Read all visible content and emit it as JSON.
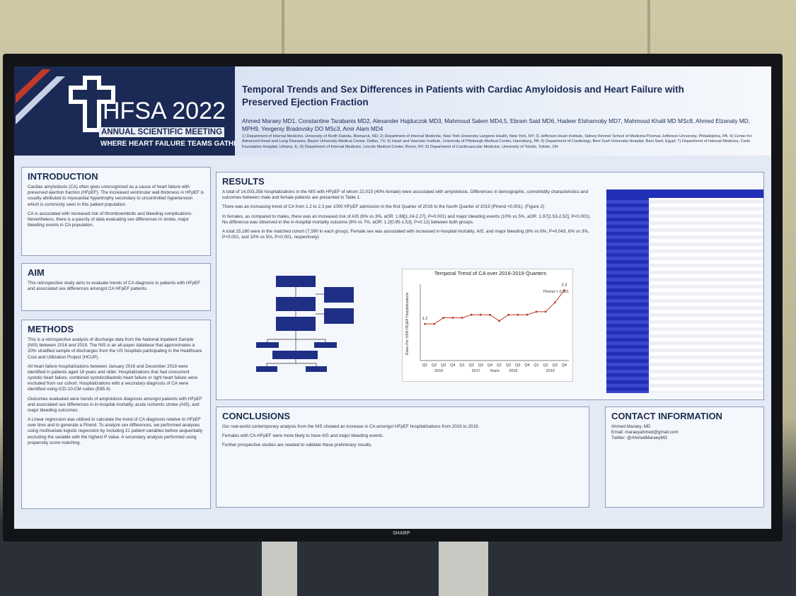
{
  "header": {
    "logo_title": "HFSA 2022",
    "logo_subtitle": "ANNUAL SCIENTIFIC MEETING",
    "logo_tagline": "WHERE HEART FAILURE TEAMS GATHER",
    "title": "Temporal Trends and Sex Differences in Patients with Cardiac Amyloidosis and Heart Failure with Preserved Ejection Fraction",
    "authors": "Ahmed Maraey MD1, Constantine Tarabanis MD2, Alexander Hajduczok MD3, Mahmoud Salem MD4,5, Ebram Said MD6, Hadeer Elsharnoby MD7, Mahmoud Khalil MD MSc8, Ahmed Elzanaty MD, MPH9, Yevgeniy Bradovsky DO MSc3, Amir Alam MD4",
    "affiliations": "1) Department of Internal Medicine, University of North Dakota, Bismarck, ND; 2) Department of Internal Medicine, New York University Langone Health, New York, NY; 3) Jefferson Heart Institute, Sidney Kimmel School of Medicine/Thomas Jefferson University, Philadelphia, PA; 4) Center for Advanced Heart and Lung Diseases, Baylor University Medical Center, Dallas, TX; 5) Heart and Vascular Institute, University of Pittsburgh Medical Center, Harrisburg, PA; 6) Department of Cardiology, Beni Suef University Hospital, Beni Suef, Egypt; 7) Department of Internal Medicine, Carle Foundation Hospital, Urbana, IL; 8) Department of Internal Medicine, Lincoln Medical Center, Bronx, NY; 9) Department of Cardiovascular Medicine, University of Toledo, Toledo, OH"
  },
  "introduction": {
    "heading": "INTRODUCTION",
    "paragraphs": [
      "Cardiac amyloidosis (CA) often goes unrecognized as a cause of heart failure with preserved ejection fraction (HFpEF). The increased ventricular wall thickness in HFpEF is usually attributed to myocardial hypertrophy secondary to uncontrolled hypertension which is commonly seen in this patient population.",
      "CA is associated with increased risk of thromboembolic and bleeding complications. Nevertheless, there is a paucity of data evaluating sex differences in stroke, major bleeding events in CA population."
    ]
  },
  "aim": {
    "heading": "AIM",
    "paragraphs": [
      "This retrospective study aims to evaluate trends of CA diagnosis in patients with HFpEF and associated sex differences amongst CA HFpEF patients."
    ]
  },
  "methods": {
    "heading": "METHODS",
    "paragraphs": [
      "This is a retrospective analysis of discharge data from the National Inpatient Sample (NIS) between 2016 and 2019. The NIS is an all-payer database that approximates a 20% stratified sample of discharges from the US hospitals participating in the Healthcare Cost and Utilization Project (HCUP).",
      "All heart failure hospitalizations between January 2016 and December 2019 were identified in patients aged 18 years and older. Hospitalizations that had concurrent systolic heart failure, combined systolic/diastolic heart failure or right heart failure were excluded from our cohort. Hospitalizations with a secondary diagnosis of CA were identified using ICD-10-CM codes (E85.4).",
      "Outcomes evaluated were trends of amyloidosis diagnosis amongst patients with HFpEF and associated sex differences in in-hospital mortality, acute ischemic stroke (AIS), and major bleeding outcomes.",
      "A Linear regression was utilized to calculate the trend of CA diagnosis relative to HFpEF over time and to generate a Ptrend. To analyze sex differences, we performed analyses using multivariate logistic regression by including 21 patient variables before sequentially excluding the variable with the highest P value. A secondary analysis performed using propensity score matching."
    ]
  },
  "results": {
    "heading": "RESULTS",
    "paragraphs": [
      "A total of 14,003,358 hospitalizations in the NIS with HFpEF of whom 22,015 (40% female) were associated with amyloidosis. Differences in demographic, comorbidity characteristics and outcomes between male and female patients are presented in Table 1.",
      "There was an increasing trend of CA from 1.2 to 2.3 per 1000 HFpEF admission in the first Quarter of 2016 to the fourth Quarter of 2019 (Ptrend <0.001). (Figure 2)",
      "In females, as compared to males, there was an increased risk of AIS (6% vs 3%, aOR: 1.68[1.24-2.27], P=0.001) and major bleeding events (10% vs 5%, aOR: 1.97[1.53-2.52], P<0.001). No difference was observed in the in-hospital mortality outcome (8% vs 7%, aOR: 1.2[0.95-1.53], P=0.12) between both groups.",
      "A total 15,180 were in the matched cohort (7,590 in each group). Female sex was associated with increased in-hospital mortality, AIS, and major bleeding (8% vs 6%, P=0.043, 6% vs 3%, P<0.001, and 10% vs 5%, P<0.001, respectively)"
    ]
  },
  "chart_data": {
    "type": "line",
    "title": "Temporal Trend of CA over 2016-2019 Quarters",
    "y_label": "Rates Per 1000 HFpEF Hospitalizations",
    "x_label": "Years",
    "annotation": "Ptrend < 0.001",
    "categories": [
      "Q1",
      "Q2",
      "Q3",
      "Q4",
      "Q1",
      "Q2",
      "Q3",
      "Q4",
      "Q1",
      "Q2",
      "Q3",
      "Q4",
      "Q1",
      "Q2",
      "Q3",
      "Q4"
    ],
    "category_groups": [
      "2016",
      "2017",
      "2018",
      "2019"
    ],
    "values": [
      1.2,
      1.2,
      1.4,
      1.4,
      1.4,
      1.5,
      1.5,
      1.5,
      1.3,
      1.5,
      1.5,
      1.5,
      1.6,
      1.6,
      1.9,
      2.3
    ],
    "color": "#c0392b",
    "ylim": [
      0,
      2.5
    ]
  },
  "conclusions": {
    "heading": "CONCLUSIONS",
    "paragraphs": [
      "Our real-world contemporary analysis from the NIS showed an increase in CA amongst HFpEF hospitalizations from 2016 to 2019.",
      "Females with CA-HFpEF were more likely to have AIS and major bleeding events.",
      "Further prospective studies are needed to validate these preliminary results."
    ]
  },
  "contact": {
    "heading": "CONTACT INFORMATION",
    "lines": [
      "Ahmed Maraey, MD",
      "Email: maraeyahmed@gmail.com",
      "Twitter: @AhmedMaraeyMD"
    ]
  },
  "screen_brand": "SHARP"
}
